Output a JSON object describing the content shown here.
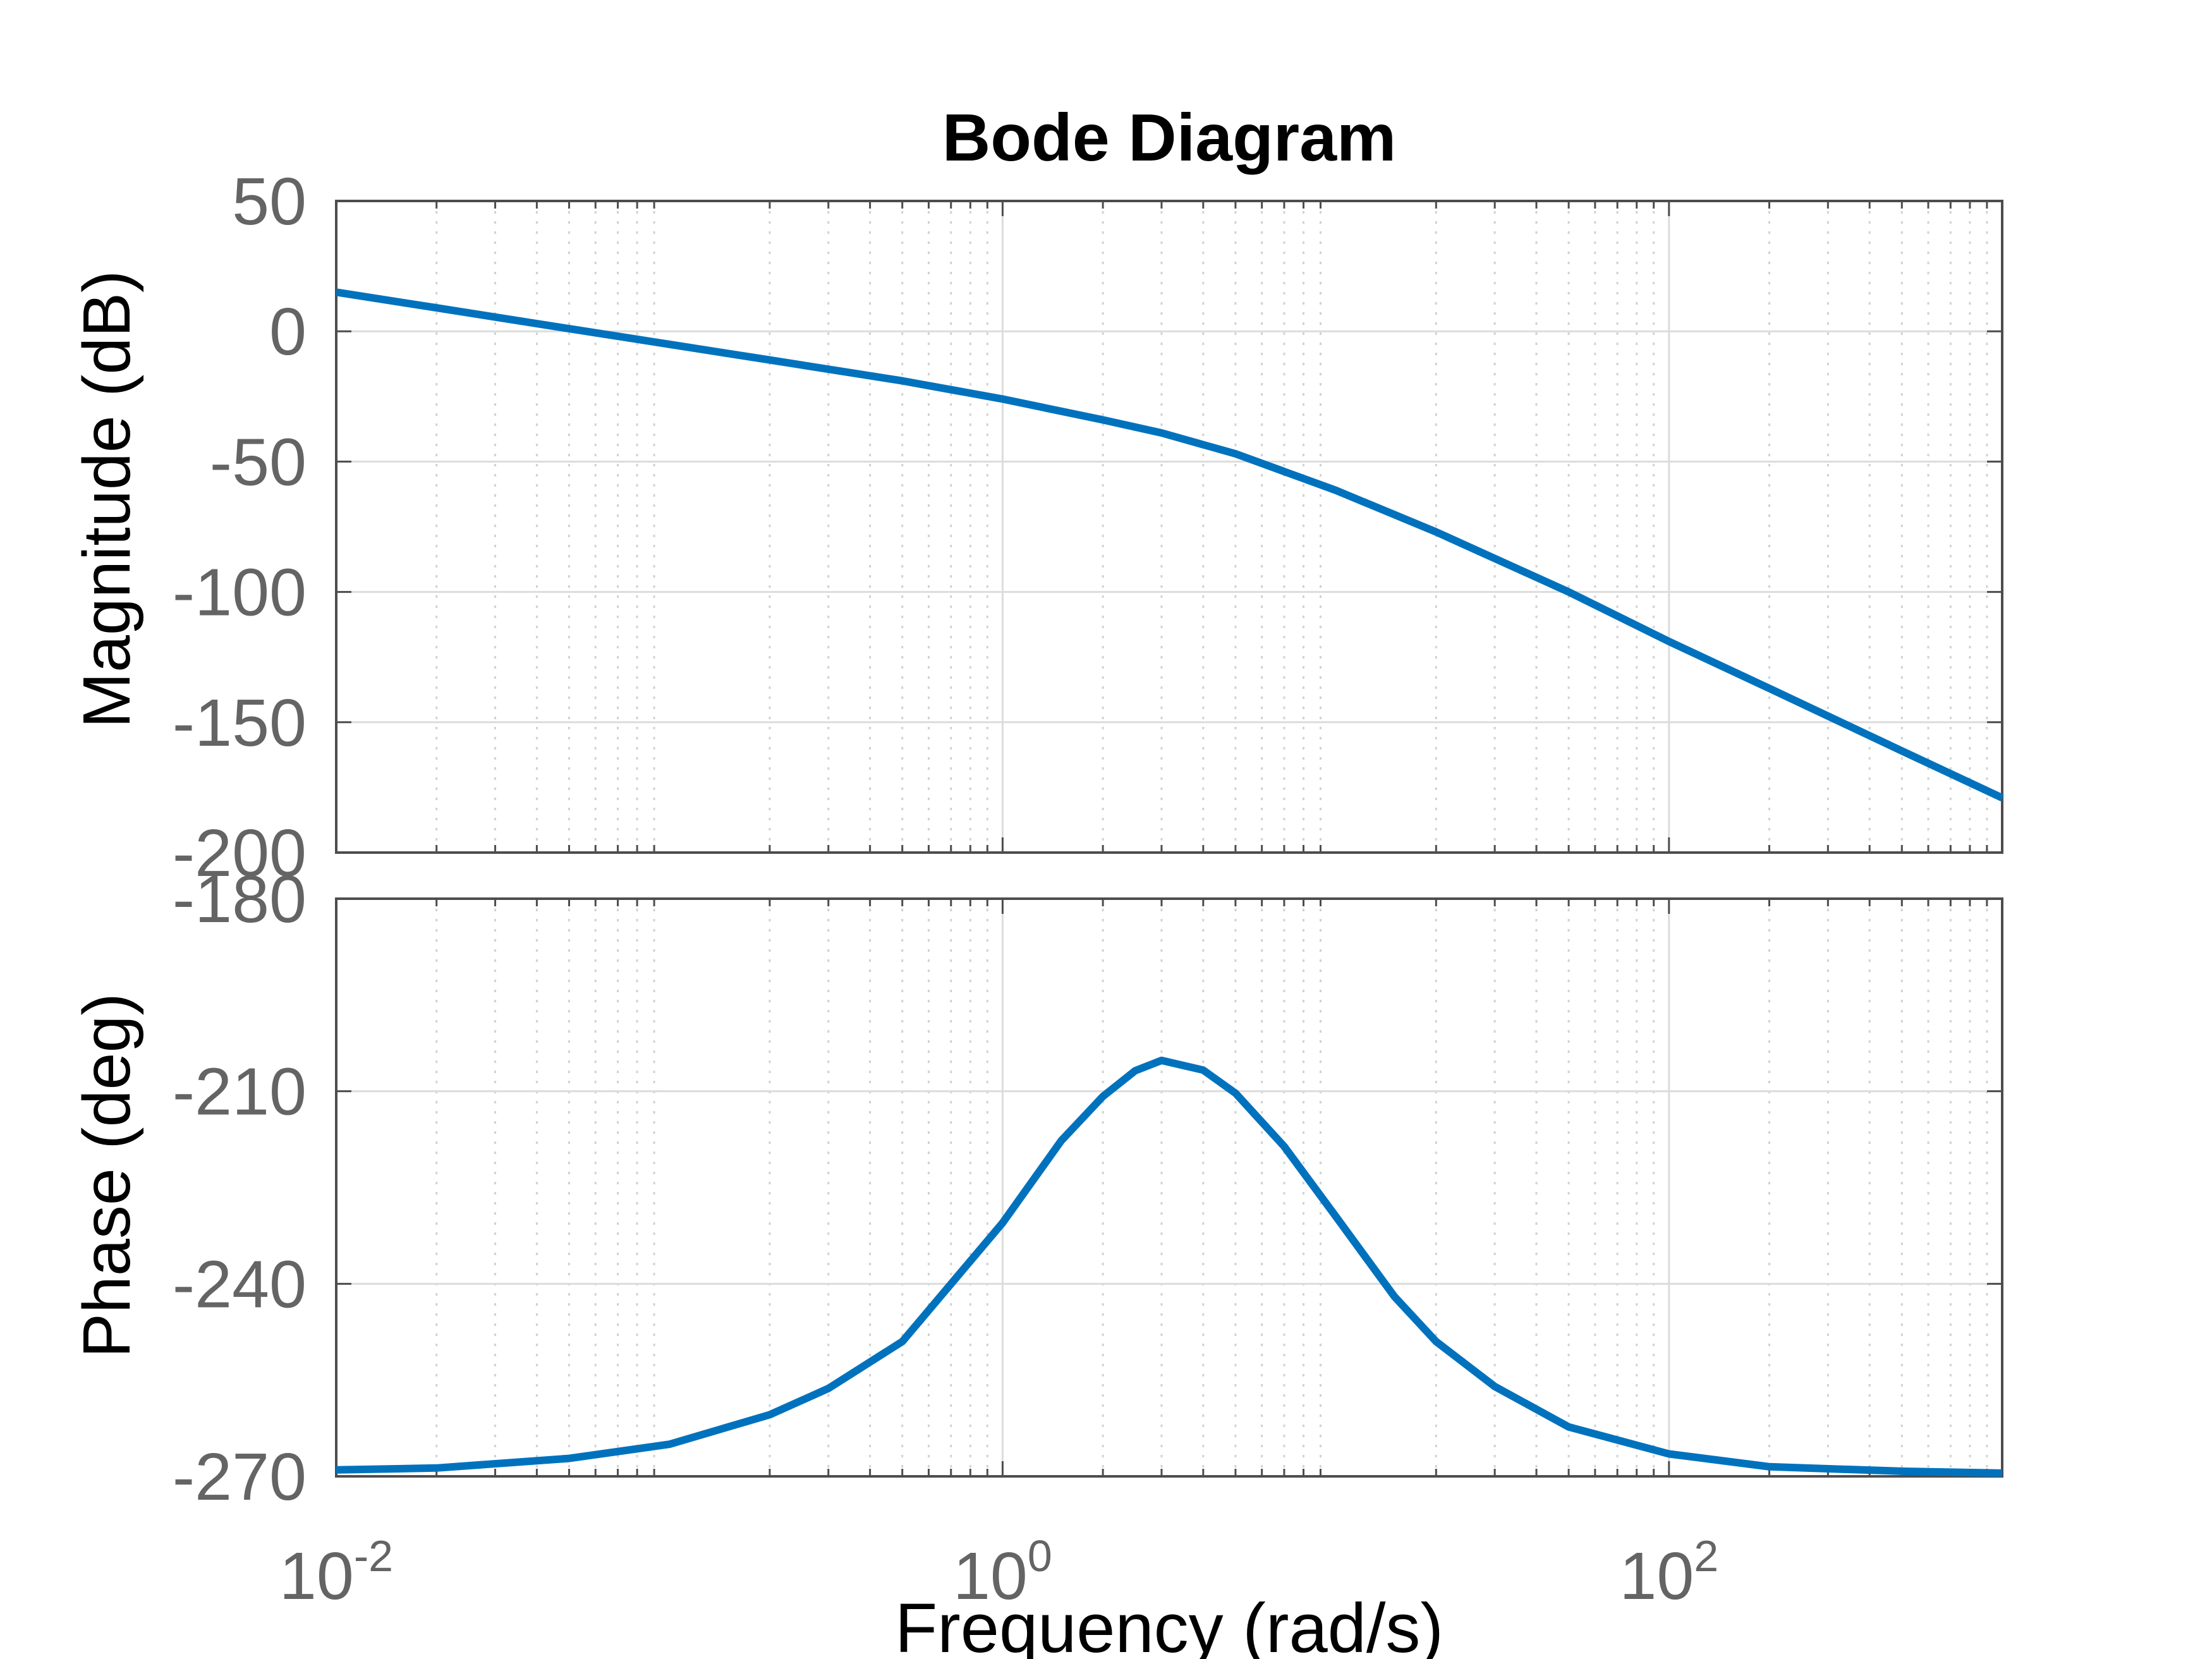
{
  "chart_data": {
    "type": "line",
    "title": "Bode Diagram",
    "xlabel": "Frequency  (rad/s)",
    "x_scale": "log",
    "xlim": [
      0.01,
      1000
    ],
    "x_ticks": [
      {
        "base": "10",
        "exp": "-2"
      },
      {
        "base": "10",
        "exp": "0"
      },
      {
        "base": "10",
        "exp": "2"
      }
    ],
    "grid": true,
    "line_color": "#0072bd",
    "subplots": [
      {
        "name": "magnitude",
        "ylabel": "Magnitude (dB)",
        "ylim": [
          -200,
          50
        ],
        "y_ticks": [
          "50",
          "0",
          "-50",
          "-100",
          "-150",
          "-200"
        ],
        "series": [
          {
            "x": [
              0.01,
              0.02,
              0.05,
              0.1,
              0.2,
              0.5,
              1,
              2,
              3,
              5,
              10,
              20,
              50,
              100,
              200,
              500,
              1000
            ],
            "values": [
              15,
              9,
              1,
              -5,
              -11,
              -19,
              -26,
              -34,
              -39,
              -47,
              -61,
              -77,
              -100,
              -119,
              -137,
              -161,
              -179
            ]
          }
        ]
      },
      {
        "name": "phase",
        "ylabel": "Phase (deg)",
        "ylim": [
          -270,
          -180
        ],
        "y_ticks": [
          "-180",
          "-210",
          "-240",
          "-270"
        ],
        "series": [
          {
            "x": [
              0.01,
              0.02,
              0.05,
              0.1,
              0.2,
              0.3,
              0.5,
              1,
              1.5,
              2,
              2.5,
              3,
              4,
              5,
              7,
              10,
              15,
              20,
              30,
              50,
              100,
              200,
              500,
              1000
            ],
            "values": [
              -269,
              -268.7,
              -267.2,
              -265,
              -260.4,
              -256.3,
              -249,
              -230.5,
              -217.7,
              -210.8,
              -206.8,
              -205.2,
              -206.7,
              -210.3,
              -218.6,
              -229.5,
              -242,
              -249,
              -256,
              -262.3,
              -266.5,
              -268.5,
              -269.2,
              -269.5
            ]
          }
        ]
      }
    ]
  }
}
